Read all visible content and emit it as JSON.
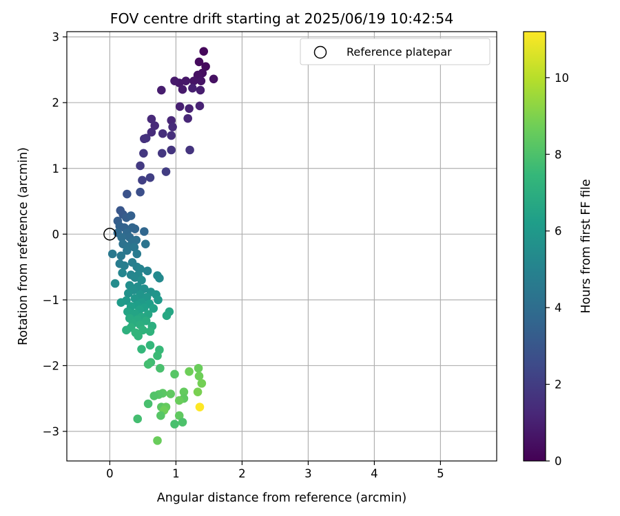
{
  "chart_data": {
    "type": "scatter",
    "title": "FOV centre drift starting at 2025/06/19 10:42:54",
    "xlabel": "Angular distance from reference (arcmin)",
    "ylabel": "Rotation from reference (arcmin)",
    "xlim": [
      -0.65,
      5.85
    ],
    "ylim": [
      -3.45,
      3.08
    ],
    "xticks": [
      0,
      1,
      2,
      3,
      4,
      5
    ],
    "yticks": [
      -3,
      -2,
      -1,
      0,
      1,
      2,
      3
    ],
    "xtick_labels": [
      "0",
      "1",
      "2",
      "3",
      "4",
      "5"
    ],
    "ytick_labels": [
      "−3",
      "−2",
      "−1",
      "0",
      "1",
      "2",
      "3"
    ],
    "grid": true,
    "legend": {
      "position": "top-right",
      "entries": [
        "Reference platepar"
      ]
    },
    "reference_point": {
      "x": 0,
      "y": 0
    },
    "colorbar": {
      "label": "Hours from first FF file",
      "range": [
        0,
        11.2
      ],
      "ticks": [
        0,
        2,
        4,
        6,
        8,
        10
      ],
      "tick_labels": [
        "0",
        "2",
        "4",
        "6",
        "8",
        "10"
      ],
      "colormap": "viridis"
    },
    "points": [
      {
        "x": 1.42,
        "y": 2.78,
        "h": 0.2
      },
      {
        "x": 1.35,
        "y": 2.62,
        "h": 0.3
      },
      {
        "x": 1.45,
        "y": 2.55,
        "h": 0.3
      },
      {
        "x": 1.4,
        "y": 2.45,
        "h": 0.4
      },
      {
        "x": 1.33,
        "y": 2.42,
        "h": 0.5
      },
      {
        "x": 1.57,
        "y": 2.36,
        "h": 0.5
      },
      {
        "x": 1.38,
        "y": 2.33,
        "h": 0.6
      },
      {
        "x": 1.27,
        "y": 2.33,
        "h": 0.6
      },
      {
        "x": 1.15,
        "y": 2.33,
        "h": 0.7
      },
      {
        "x": 1.05,
        "y": 2.3,
        "h": 0.7
      },
      {
        "x": 0.98,
        "y": 2.33,
        "h": 0.8
      },
      {
        "x": 1.1,
        "y": 2.2,
        "h": 0.8
      },
      {
        "x": 1.37,
        "y": 2.19,
        "h": 0.9
      },
      {
        "x": 0.78,
        "y": 2.19,
        "h": 0.9
      },
      {
        "x": 1.25,
        "y": 2.22,
        "h": 1.0
      },
      {
        "x": 1.06,
        "y": 1.94,
        "h": 1.0
      },
      {
        "x": 1.2,
        "y": 1.91,
        "h": 1.1
      },
      {
        "x": 1.36,
        "y": 1.95,
        "h": 1.1
      },
      {
        "x": 1.18,
        "y": 1.76,
        "h": 1.2
      },
      {
        "x": 0.93,
        "y": 1.73,
        "h": 1.2
      },
      {
        "x": 0.63,
        "y": 1.75,
        "h": 1.3
      },
      {
        "x": 0.68,
        "y": 1.65,
        "h": 1.3
      },
      {
        "x": 0.95,
        "y": 1.63,
        "h": 1.4
      },
      {
        "x": 0.63,
        "y": 1.55,
        "h": 1.4
      },
      {
        "x": 0.8,
        "y": 1.53,
        "h": 1.5
      },
      {
        "x": 0.93,
        "y": 1.5,
        "h": 1.5
      },
      {
        "x": 0.55,
        "y": 1.46,
        "h": 1.6
      },
      {
        "x": 0.52,
        "y": 1.45,
        "h": 1.6
      },
      {
        "x": 0.93,
        "y": 1.28,
        "h": 1.7
      },
      {
        "x": 1.21,
        "y": 1.28,
        "h": 1.7
      },
      {
        "x": 0.51,
        "y": 1.23,
        "h": 1.8
      },
      {
        "x": 0.79,
        "y": 1.23,
        "h": 1.8
      },
      {
        "x": 0.46,
        "y": 1.04,
        "h": 1.9
      },
      {
        "x": 0.85,
        "y": 0.95,
        "h": 2.0
      },
      {
        "x": 0.49,
        "y": 0.82,
        "h": 2.1
      },
      {
        "x": 0.61,
        "y": 0.86,
        "h": 2.1
      },
      {
        "x": 0.46,
        "y": 0.64,
        "h": 2.7
      },
      {
        "x": 0.26,
        "y": 0.61,
        "h": 2.8
      },
      {
        "x": 0.16,
        "y": 0.36,
        "h": 3.0
      },
      {
        "x": 0.2,
        "y": 0.3,
        "h": 3.1
      },
      {
        "x": 0.12,
        "y": 0.2,
        "h": 3.3
      },
      {
        "x": 0.25,
        "y": 0.25,
        "h": 3.3
      },
      {
        "x": 0.32,
        "y": 0.28,
        "h": 3.4
      },
      {
        "x": 0.15,
        "y": 0.12,
        "h": 3.5
      },
      {
        "x": 0.22,
        "y": 0.1,
        "h": 3.5
      },
      {
        "x": 0.34,
        "y": 0.1,
        "h": 3.6
      },
      {
        "x": 0.38,
        "y": 0.08,
        "h": 3.6
      },
      {
        "x": 0.52,
        "y": 0.04,
        "h": 3.7
      },
      {
        "x": 0.12,
        "y": 0.02,
        "h": 3.8
      },
      {
        "x": 0.26,
        "y": 0.02,
        "h": 3.8
      },
      {
        "x": 0.3,
        "y": -0.05,
        "h": 3.9
      },
      {
        "x": 0.18,
        "y": -0.05,
        "h": 4.0
      },
      {
        "x": 0.4,
        "y": -0.09,
        "h": 4.1
      },
      {
        "x": 0.34,
        "y": -0.12,
        "h": 4.1
      },
      {
        "x": 0.2,
        "y": -0.15,
        "h": 4.2
      },
      {
        "x": 0.54,
        "y": -0.15,
        "h": 4.3
      },
      {
        "x": 0.27,
        "y": -0.19,
        "h": 4.3
      },
      {
        "x": 0.37,
        "y": -0.2,
        "h": 4.4
      },
      {
        "x": 0.26,
        "y": -0.25,
        "h": 4.4
      },
      {
        "x": 0.04,
        "y": -0.3,
        "h": 4.5
      },
      {
        "x": 0.17,
        "y": -0.33,
        "h": 4.5
      },
      {
        "x": 0.41,
        "y": -0.3,
        "h": 4.6
      },
      {
        "x": 0.15,
        "y": -0.45,
        "h": 4.7
      },
      {
        "x": 0.34,
        "y": -0.43,
        "h": 4.8
      },
      {
        "x": 0.22,
        "y": -0.48,
        "h": 4.8
      },
      {
        "x": 0.41,
        "y": -0.5,
        "h": 4.9
      },
      {
        "x": 0.46,
        "y": -0.53,
        "h": 5.0
      },
      {
        "x": 0.57,
        "y": -0.56,
        "h": 5.0
      },
      {
        "x": 0.19,
        "y": -0.59,
        "h": 5.1
      },
      {
        "x": 0.32,
        "y": -0.62,
        "h": 5.1
      },
      {
        "x": 0.43,
        "y": -0.62,
        "h": 5.2
      },
      {
        "x": 0.38,
        "y": -0.66,
        "h": 5.2
      },
      {
        "x": 0.72,
        "y": -0.63,
        "h": 5.3
      },
      {
        "x": 0.75,
        "y": -0.67,
        "h": 5.3
      },
      {
        "x": 0.48,
        "y": -0.7,
        "h": 5.4
      },
      {
        "x": 0.08,
        "y": -0.75,
        "h": 5.4
      },
      {
        "x": 0.3,
        "y": -0.78,
        "h": 5.5
      },
      {
        "x": 0.42,
        "y": -0.8,
        "h": 5.5
      },
      {
        "x": 0.52,
        "y": -0.83,
        "h": 5.6
      },
      {
        "x": 0.36,
        "y": -0.85,
        "h": 5.6
      },
      {
        "x": 0.62,
        "y": -0.88,
        "h": 5.7
      },
      {
        "x": 0.28,
        "y": -0.9,
        "h": 5.7
      },
      {
        "x": 0.46,
        "y": -0.92,
        "h": 5.8
      },
      {
        "x": 0.7,
        "y": -0.92,
        "h": 5.8
      },
      {
        "x": 0.56,
        "y": -0.96,
        "h": 5.9
      },
      {
        "x": 0.38,
        "y": -0.98,
        "h": 5.9
      },
      {
        "x": 0.73,
        "y": -1.0,
        "h": 6.0
      },
      {
        "x": 0.25,
        "y": -1.01,
        "h": 6.0
      },
      {
        "x": 0.17,
        "y": -1.04,
        "h": 6.1
      },
      {
        "x": 0.48,
        "y": -1.04,
        "h": 6.1
      },
      {
        "x": 0.6,
        "y": -1.06,
        "h": 6.2
      },
      {
        "x": 0.41,
        "y": -1.08,
        "h": 6.2
      },
      {
        "x": 0.32,
        "y": -1.1,
        "h": 6.3
      },
      {
        "x": 0.52,
        "y": -1.12,
        "h": 6.3
      },
      {
        "x": 0.66,
        "y": -1.13,
        "h": 6.4
      },
      {
        "x": 0.45,
        "y": -1.15,
        "h": 6.4
      },
      {
        "x": 0.27,
        "y": -1.18,
        "h": 6.5
      },
      {
        "x": 0.38,
        "y": -1.21,
        "h": 6.5
      },
      {
        "x": 0.58,
        "y": -1.22,
        "h": 6.6
      },
      {
        "x": 0.9,
        "y": -1.18,
        "h": 6.6
      },
      {
        "x": 0.48,
        "y": -1.26,
        "h": 6.7
      },
      {
        "x": 0.86,
        "y": -1.24,
        "h": 6.7
      },
      {
        "x": 0.3,
        "y": -1.28,
        "h": 6.8
      },
      {
        "x": 0.42,
        "y": -1.3,
        "h": 6.8
      },
      {
        "x": 0.55,
        "y": -1.32,
        "h": 6.9
      },
      {
        "x": 0.35,
        "y": -1.36,
        "h": 6.9
      },
      {
        "x": 0.46,
        "y": -1.38,
        "h": 7.0
      },
      {
        "x": 0.64,
        "y": -1.4,
        "h": 7.0
      },
      {
        "x": 0.32,
        "y": -1.42,
        "h": 7.1
      },
      {
        "x": 0.25,
        "y": -1.46,
        "h": 7.1
      },
      {
        "x": 0.5,
        "y": -1.46,
        "h": 7.2
      },
      {
        "x": 0.61,
        "y": -1.48,
        "h": 7.2
      },
      {
        "x": 0.39,
        "y": -1.5,
        "h": 7.3
      },
      {
        "x": 0.43,
        "y": -1.55,
        "h": 7.3
      },
      {
        "x": 0.61,
        "y": -1.69,
        "h": 7.4
      },
      {
        "x": 0.48,
        "y": -1.75,
        "h": 7.4
      },
      {
        "x": 0.75,
        "y": -1.76,
        "h": 7.5
      },
      {
        "x": 0.72,
        "y": -1.85,
        "h": 7.6
      },
      {
        "x": 0.62,
        "y": -1.95,
        "h": 7.7
      },
      {
        "x": 0.58,
        "y": -1.98,
        "h": 7.8
      },
      {
        "x": 0.76,
        "y": -2.04,
        "h": 7.9
      },
      {
        "x": 1.34,
        "y": -2.04,
        "h": 8.6
      },
      {
        "x": 1.2,
        "y": -2.09,
        "h": 8.7
      },
      {
        "x": 1.35,
        "y": -2.16,
        "h": 8.7
      },
      {
        "x": 0.98,
        "y": -2.13,
        "h": 8.2
      },
      {
        "x": 1.39,
        "y": -2.27,
        "h": 8.8
      },
      {
        "x": 1.33,
        "y": -2.4,
        "h": 8.9
      },
      {
        "x": 1.12,
        "y": -2.4,
        "h": 8.5
      },
      {
        "x": 0.8,
        "y": -2.42,
        "h": 8.3
      },
      {
        "x": 0.74,
        "y": -2.44,
        "h": 8.2
      },
      {
        "x": 0.92,
        "y": -2.43,
        "h": 8.4
      },
      {
        "x": 0.67,
        "y": -2.46,
        "h": 8.1
      },
      {
        "x": 1.12,
        "y": -2.5,
        "h": 8.4
      },
      {
        "x": 1.05,
        "y": -2.53,
        "h": 8.6
      },
      {
        "x": 0.58,
        "y": -2.58,
        "h": 7.9
      },
      {
        "x": 0.78,
        "y": -2.63,
        "h": 8.3
      },
      {
        "x": 0.85,
        "y": -2.63,
        "h": 8.5
      },
      {
        "x": 0.82,
        "y": -2.68,
        "h": 8.7
      },
      {
        "x": 0.77,
        "y": -2.76,
        "h": 8.2
      },
      {
        "x": 1.05,
        "y": -2.76,
        "h": 8.4
      },
      {
        "x": 0.42,
        "y": -2.81,
        "h": 7.8
      },
      {
        "x": 1.1,
        "y": -2.86,
        "h": 8.0
      },
      {
        "x": 0.98,
        "y": -2.89,
        "h": 7.9
      },
      {
        "x": 0.72,
        "y": -3.14,
        "h": 8.6
      },
      {
        "x": 1.36,
        "y": -2.63,
        "h": 11.2
      }
    ]
  }
}
